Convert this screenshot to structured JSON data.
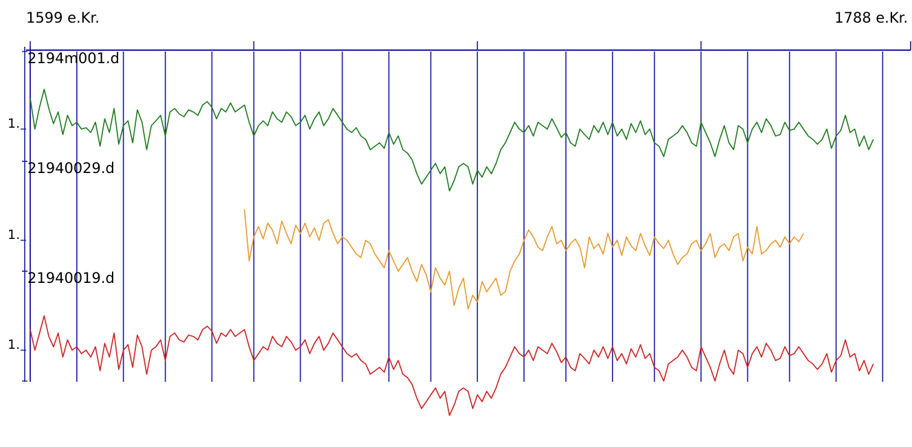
{
  "chart_data": {
    "type": "line",
    "title": "",
    "x_start_label": "1599 e.Kr.",
    "x_end_label": "1788 e.Kr.",
    "xlim": [
      1599,
      1788
    ],
    "top_axis_major_ticks": [
      1599,
      1647,
      1695,
      1743,
      1788
    ],
    "vertical_lines_x": [
      1599,
      1609,
      1619,
      1628,
      1638,
      1647,
      1657,
      1666,
      1676,
      1685,
      1695,
      1705,
      1714,
      1724,
      1733,
      1743,
      1753,
      1762,
      1772,
      1782
    ],
    "y_tick_label": "1",
    "colors": {
      "axis": "#1a1a9e",
      "grid": "#1a1a9e"
    },
    "series": [
      {
        "name": "2194m001.d",
        "color": "#1e7a1e",
        "x_start": 1599,
        "values": [
          1.45,
          1.0,
          1.32,
          1.58,
          1.3,
          1.08,
          1.25,
          0.92,
          1.2,
          1.05,
          1.1,
          1.0,
          1.02,
          0.95,
          1.1,
          0.75,
          1.15,
          0.95,
          1.3,
          0.78,
          1.05,
          1.12,
          0.8,
          1.28,
          1.1,
          0.7,
          1.05,
          1.12,
          1.2,
          0.9,
          1.25,
          1.3,
          1.22,
          1.18,
          1.28,
          1.25,
          1.2,
          1.35,
          1.4,
          1.32,
          1.15,
          1.3,
          1.25,
          1.38,
          1.25,
          1.3,
          1.35,
          1.1,
          0.9,
          1.05,
          1.12,
          1.05,
          1.25,
          1.15,
          1.1,
          1.25,
          1.18,
          1.05,
          1.1,
          1.2,
          1.0,
          1.15,
          1.25,
          1.05,
          1.15,
          1.3,
          1.2,
          1.1,
          1.0,
          0.95,
          1.02,
          0.9,
          0.85,
          0.7,
          0.75,
          0.8,
          0.72,
          0.95,
          0.78,
          0.9,
          0.7,
          0.65,
          0.55,
          0.35,
          0.2,
          0.3,
          0.4,
          0.5,
          0.35,
          0.45,
          0.1,
          0.25,
          0.45,
          0.5,
          0.45,
          0.2,
          0.4,
          0.3,
          0.45,
          0.35,
          0.5,
          0.7,
          0.8,
          0.95,
          1.1,
          1.0,
          0.95,
          1.05,
          0.9,
          1.1,
          1.05,
          1.0,
          1.15,
          1.02,
          0.88,
          0.95,
          0.8,
          0.75,
          1.0,
          0.92,
          0.85,
          1.05,
          0.95,
          1.1,
          0.92,
          1.1,
          0.9,
          1.0,
          0.85,
          1.08,
          0.95,
          1.12,
          0.92,
          1.0,
          0.8,
          0.75,
          0.6,
          0.85,
          0.9,
          0.95,
          1.05,
          0.95,
          0.8,
          0.75,
          1.1,
          0.95,
          0.8,
          0.6,
          0.85,
          1.05,
          0.8,
          0.7,
          1.05,
          1.0,
          0.8,
          1.0,
          1.1,
          0.95,
          1.15,
          1.05,
          0.9,
          0.92,
          1.1,
          0.98,
          1.0,
          1.1,
          1.0,
          0.9,
          0.85,
          0.78,
          0.85,
          1.0,
          0.72,
          0.9,
          0.98,
          1.2,
          0.95,
          1.0,
          0.75,
          0.9,
          0.7,
          0.85
        ]
      },
      {
        "name": "21940029.d",
        "color": "#e69a2e",
        "x_start": 1645,
        "values": [
          1.45,
          0.7,
          1.05,
          1.2,
          1.02,
          1.25,
          1.15,
          0.95,
          1.28,
          1.1,
          0.95,
          1.22,
          1.1,
          1.25,
          1.05,
          1.18,
          1.0,
          1.25,
          1.3,
          1.1,
          0.95,
          1.05,
          1.0,
          0.9,
          0.8,
          0.75,
          1.0,
          0.95,
          0.8,
          0.7,
          0.6,
          0.85,
          0.7,
          0.55,
          0.65,
          0.75,
          0.55,
          0.4,
          0.65,
          0.5,
          0.25,
          0.6,
          0.45,
          0.35,
          0.55,
          0.05,
          0.3,
          0.45,
          0.0,
          0.2,
          0.1,
          0.4,
          0.25,
          0.35,
          0.45,
          0.2,
          0.25,
          0.55,
          0.7,
          0.8,
          1.0,
          1.15,
          1.05,
          0.9,
          0.85,
          1.05,
          1.2,
          0.95,
          1.0,
          0.85,
          0.95,
          1.02,
          0.9,
          0.6,
          1.05,
          0.88,
          0.95,
          0.8,
          1.1,
          0.9,
          1.0,
          0.78,
          1.05,
          0.92,
          0.85,
          1.1,
          0.92,
          0.78,
          1.05,
          0.95,
          0.88,
          1.0,
          0.8,
          0.65,
          0.75,
          0.8,
          0.95,
          1.0,
          0.85,
          0.95,
          1.1,
          0.75,
          0.9,
          0.95,
          0.85,
          1.05,
          1.1,
          0.7,
          0.9,
          0.8,
          1.2,
          0.8,
          0.85,
          0.95,
          1.0,
          0.9,
          1.05,
          0.95,
          1.05,
          0.98,
          1.1
        ]
      },
      {
        "name": "21940019.d",
        "color": "#cc2222",
        "x_start": 1599,
        "values": [
          1.3,
          1.0,
          1.25,
          1.5,
          1.2,
          1.05,
          1.25,
          0.9,
          1.15,
          1.0,
          1.05,
          0.95,
          1.0,
          0.9,
          1.05,
          0.7,
          1.1,
          0.9,
          1.25,
          0.72,
          1.0,
          1.08,
          0.75,
          1.22,
          1.05,
          0.65,
          1.0,
          1.05,
          1.15,
          0.85,
          1.2,
          1.25,
          1.15,
          1.12,
          1.22,
          1.2,
          1.15,
          1.3,
          1.35,
          1.28,
          1.1,
          1.25,
          1.2,
          1.3,
          1.2,
          1.25,
          1.3,
          1.05,
          0.85,
          0.95,
          1.05,
          1.0,
          1.2,
          1.1,
          1.05,
          1.2,
          1.12,
          1.0,
          1.05,
          1.15,
          0.95,
          1.1,
          1.2,
          1.0,
          1.1,
          1.25,
          1.15,
          1.05,
          0.95,
          0.9,
          0.95,
          0.85,
          0.8,
          0.65,
          0.7,
          0.75,
          0.68,
          0.9,
          0.72,
          0.85,
          0.65,
          0.6,
          0.5,
          0.3,
          0.15,
          0.25,
          0.35,
          0.45,
          0.3,
          0.4,
          0.05,
          0.2,
          0.4,
          0.45,
          0.4,
          0.15,
          0.35,
          0.25,
          0.4,
          0.3,
          0.45,
          0.65,
          0.75,
          0.9,
          1.05,
          0.95,
          0.9,
          1.0,
          0.85,
          1.05,
          1.0,
          0.95,
          1.1,
          0.98,
          0.82,
          0.9,
          0.75,
          0.7,
          0.95,
          0.88,
          0.8,
          1.0,
          0.9,
          1.05,
          0.88,
          1.05,
          0.85,
          0.95,
          0.8,
          1.02,
          0.9,
          1.08,
          0.88,
          0.95,
          0.75,
          0.7,
          0.55,
          0.8,
          0.85,
          0.9,
          1.0,
          0.9,
          0.75,
          0.7,
          1.05,
          0.9,
          0.75,
          0.55,
          0.8,
          1.0,
          0.75,
          0.65,
          1.0,
          0.95,
          0.75,
          0.95,
          1.05,
          0.9,
          1.1,
          1.0,
          0.85,
          0.88,
          1.05,
          0.92,
          0.95,
          1.05,
          0.95,
          0.85,
          0.8,
          0.72,
          0.8,
          0.95,
          0.68,
          0.85,
          0.92,
          1.15,
          0.9,
          0.95,
          0.7,
          0.85,
          0.65,
          0.8
        ]
      }
    ]
  }
}
